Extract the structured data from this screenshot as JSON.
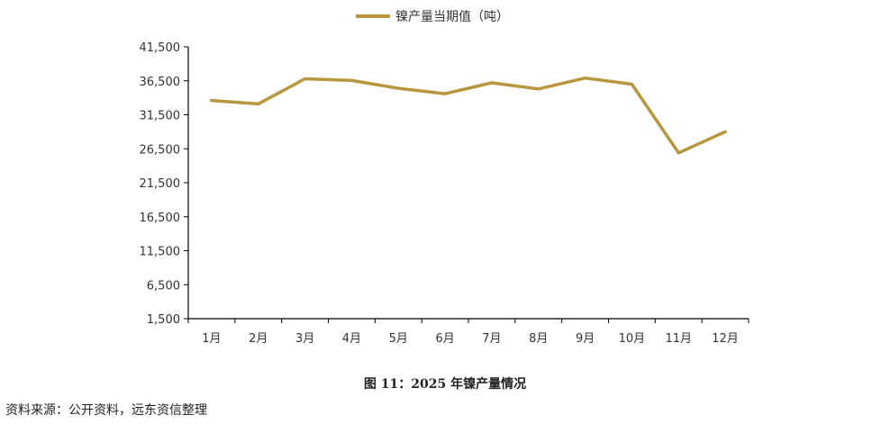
{
  "chart_data": {
    "type": "line",
    "legend_position": "top-center",
    "grid": false,
    "categories": [
      "1月",
      "2月",
      "3月",
      "4月",
      "5月",
      "6月",
      "7月",
      "8月",
      "9月",
      "10月",
      "11月",
      "12月"
    ],
    "series": [
      {
        "name": "镍产量当期值（吨）",
        "color": "#B8963E",
        "values": [
          33600,
          33100,
          36800,
          36550,
          35400,
          34600,
          36200,
          35300,
          36900,
          36000,
          25900,
          29000
        ]
      }
    ],
    "yticks": [
      "41,500",
      "36,500",
      "31,500",
      "26,500",
      "21,500",
      "16,500",
      "11,500",
      "6,500",
      "1,500"
    ],
    "ylim": [
      1500,
      41500
    ]
  },
  "caption": "图 11：2025 年镍产量情况",
  "source": "资料来源：公开资料，远东资信整理"
}
